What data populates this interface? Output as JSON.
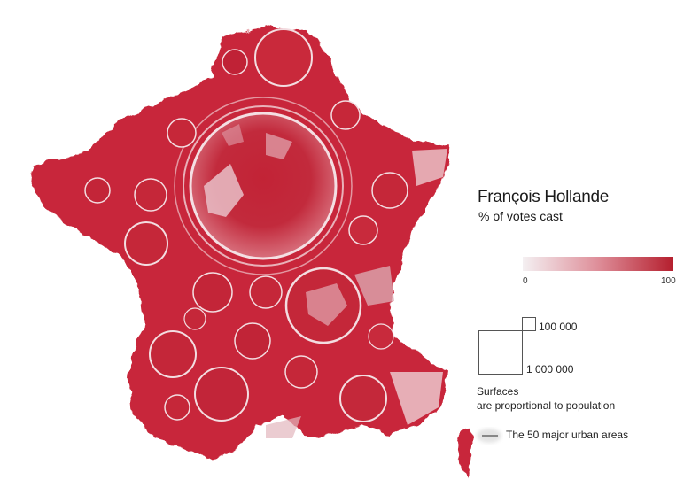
{
  "legend": {
    "title": "François Hollande",
    "subtitle": "% of votes cast",
    "scale_min": "0",
    "scale_max": "100",
    "scale_color_low": "#f4f0f2",
    "scale_color_high": "#b51f2e"
  },
  "size_legend": {
    "small_label": "100 000",
    "large_label": "1 000 000",
    "note_line1": "Surfaces",
    "note_line2": "are proportional to population"
  },
  "urban_legend": {
    "label": "The 50 major urban areas"
  },
  "colors": {
    "map_fill": "#c8283a",
    "map_dark": "#b01e2e",
    "boundary": "#f3dde1"
  }
}
